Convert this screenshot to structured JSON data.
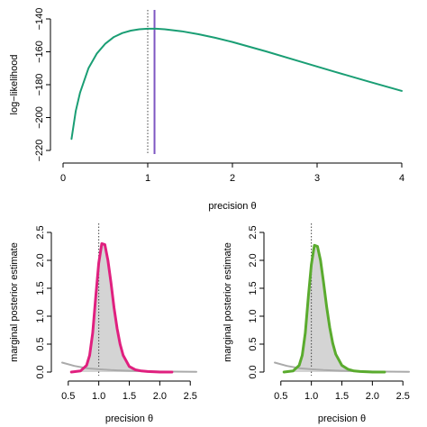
{
  "chart_data": [
    {
      "type": "line",
      "title": "",
      "xlabel": "precision θ",
      "ylabel": "log−likelihood",
      "xlim": [
        0,
        4
      ],
      "ylim": [
        -220,
        -140
      ],
      "xticks": [
        "0",
        "1",
        "2",
        "3",
        "4"
      ],
      "yticks": [
        "−220",
        "−200",
        "−180",
        "−160",
        "−140"
      ],
      "grid": false,
      "series": [
        {
          "color": "#1a9e74",
          "x": [
            0.1,
            0.15,
            0.2,
            0.3,
            0.4,
            0.5,
            0.6,
            0.7,
            0.8,
            0.9,
            1.0,
            1.1,
            1.2,
            1.4,
            1.6,
            1.8,
            2.0,
            2.4,
            2.8,
            3.2,
            3.6,
            4.0
          ],
          "y": [
            -213,
            -196,
            -185,
            -170,
            -161,
            -155,
            -151,
            -148.6,
            -147.1,
            -146.3,
            -146.0,
            -146.0,
            -146.3,
            -147.5,
            -149.3,
            -151.5,
            -154.0,
            -159.8,
            -165.9,
            -172.0,
            -178.0,
            -183.8
          ]
        }
      ],
      "vlines": [
        {
          "x": 1.0,
          "style": "dotted",
          "color": "#444444"
        },
        {
          "x": 1.08,
          "style": "solid",
          "color": "#7e57c2"
        }
      ]
    },
    {
      "type": "area",
      "title": "",
      "xlabel": "precision θ",
      "ylabel": "marginal posterior estimate",
      "xlim": [
        0.4,
        2.6
      ],
      "ylim": [
        0,
        2.5
      ],
      "xticks": [
        "0.5",
        "1.0",
        "1.5",
        "2.0",
        "2.5"
      ],
      "yticks": [
        "0.0",
        "0.5",
        "1.0",
        "1.5",
        "2.0",
        "2.5"
      ],
      "grid": false,
      "series": [
        {
          "color": "#e0207f",
          "fill": "#d4d4d4",
          "x": [
            0.55,
            0.7,
            0.8,
            0.85,
            0.9,
            0.95,
            1.0,
            1.05,
            1.1,
            1.15,
            1.2,
            1.25,
            1.3,
            1.35,
            1.4,
            1.5,
            1.6,
            1.7,
            1.8,
            2.0,
            2.2
          ],
          "y": [
            0.0,
            0.02,
            0.12,
            0.3,
            0.7,
            1.35,
            1.95,
            2.3,
            2.28,
            2.0,
            1.6,
            1.15,
            0.78,
            0.5,
            0.3,
            0.1,
            0.04,
            0.02,
            0.01,
            0.0,
            0.0
          ]
        },
        {
          "color": "#aaaaaa",
          "x": [
            0.4,
            0.6,
            0.8,
            1.0,
            1.2,
            1.5,
            2.0,
            2.6
          ],
          "y": [
            0.17,
            0.11,
            0.07,
            0.05,
            0.035,
            0.022,
            0.01,
            0.005
          ]
        }
      ],
      "vlines": [
        {
          "x": 1.0,
          "style": "dotted",
          "color": "#444444"
        }
      ]
    },
    {
      "type": "area",
      "title": "",
      "xlabel": "precision θ",
      "ylabel": "marginal posterior estimate",
      "xlim": [
        0.4,
        2.6
      ],
      "ylim": [
        0,
        2.5
      ],
      "xticks": [
        "0.5",
        "1.0",
        "1.5",
        "2.0",
        "2.5"
      ],
      "yticks": [
        "0.0",
        "0.5",
        "1.0",
        "1.5",
        "2.0",
        "2.5"
      ],
      "grid": false,
      "series": [
        {
          "color": "#5aab2e",
          "fill": "#d4d4d4",
          "x": [
            0.55,
            0.7,
            0.8,
            0.85,
            0.9,
            0.95,
            1.0,
            1.05,
            1.1,
            1.15,
            1.2,
            1.25,
            1.3,
            1.35,
            1.4,
            1.5,
            1.6,
            1.7,
            1.8,
            2.0,
            2.2
          ],
          "y": [
            0.0,
            0.02,
            0.12,
            0.3,
            0.7,
            1.35,
            1.92,
            2.27,
            2.25,
            2.0,
            1.6,
            1.17,
            0.8,
            0.52,
            0.32,
            0.12,
            0.05,
            0.02,
            0.01,
            0.0,
            0.0
          ]
        },
        {
          "color": "#aaaaaa",
          "x": [
            0.4,
            0.6,
            0.8,
            1.0,
            1.2,
            1.5,
            2.0,
            2.6
          ],
          "y": [
            0.17,
            0.11,
            0.07,
            0.05,
            0.035,
            0.022,
            0.01,
            0.005
          ]
        }
      ],
      "vlines": [
        {
          "x": 1.0,
          "style": "dotted",
          "color": "#444444"
        }
      ]
    }
  ]
}
